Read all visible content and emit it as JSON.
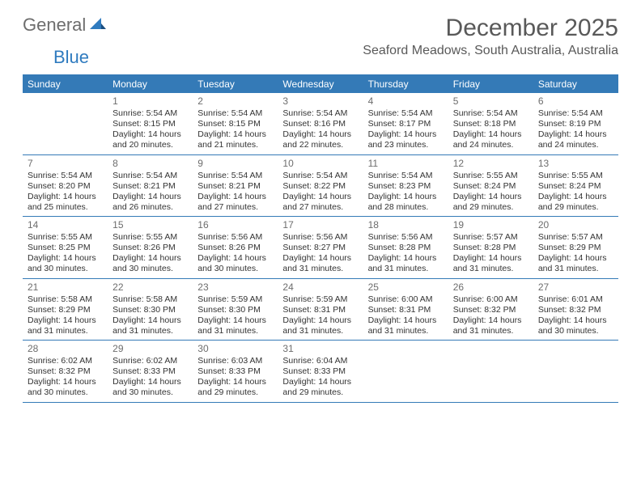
{
  "logo": {
    "text1": "General",
    "text2": "Blue"
  },
  "title": "December 2025",
  "location": "Seaford Meadows, South Australia, Australia",
  "colors": {
    "accent": "#347ab7",
    "header_text": "#ffffff",
    "title_color": "#595959",
    "body_text": "#333333",
    "daynum_color": "#6d6d6d",
    "background": "#ffffff"
  },
  "day_headers": [
    "Sunday",
    "Monday",
    "Tuesday",
    "Wednesday",
    "Thursday",
    "Friday",
    "Saturday"
  ],
  "weeks": [
    [
      null,
      {
        "n": "1",
        "sr": "5:54 AM",
        "ss": "8:15 PM",
        "dl": "14 hours and 20 minutes."
      },
      {
        "n": "2",
        "sr": "5:54 AM",
        "ss": "8:15 PM",
        "dl": "14 hours and 21 minutes."
      },
      {
        "n": "3",
        "sr": "5:54 AM",
        "ss": "8:16 PM",
        "dl": "14 hours and 22 minutes."
      },
      {
        "n": "4",
        "sr": "5:54 AM",
        "ss": "8:17 PM",
        "dl": "14 hours and 23 minutes."
      },
      {
        "n": "5",
        "sr": "5:54 AM",
        "ss": "8:18 PM",
        "dl": "14 hours and 24 minutes."
      },
      {
        "n": "6",
        "sr": "5:54 AM",
        "ss": "8:19 PM",
        "dl": "14 hours and 24 minutes."
      }
    ],
    [
      {
        "n": "7",
        "sr": "5:54 AM",
        "ss": "8:20 PM",
        "dl": "14 hours and 25 minutes."
      },
      {
        "n": "8",
        "sr": "5:54 AM",
        "ss": "8:21 PM",
        "dl": "14 hours and 26 minutes."
      },
      {
        "n": "9",
        "sr": "5:54 AM",
        "ss": "8:21 PM",
        "dl": "14 hours and 27 minutes."
      },
      {
        "n": "10",
        "sr": "5:54 AM",
        "ss": "8:22 PM",
        "dl": "14 hours and 27 minutes."
      },
      {
        "n": "11",
        "sr": "5:54 AM",
        "ss": "8:23 PM",
        "dl": "14 hours and 28 minutes."
      },
      {
        "n": "12",
        "sr": "5:55 AM",
        "ss": "8:24 PM",
        "dl": "14 hours and 29 minutes."
      },
      {
        "n": "13",
        "sr": "5:55 AM",
        "ss": "8:24 PM",
        "dl": "14 hours and 29 minutes."
      }
    ],
    [
      {
        "n": "14",
        "sr": "5:55 AM",
        "ss": "8:25 PM",
        "dl": "14 hours and 30 minutes."
      },
      {
        "n": "15",
        "sr": "5:55 AM",
        "ss": "8:26 PM",
        "dl": "14 hours and 30 minutes."
      },
      {
        "n": "16",
        "sr": "5:56 AM",
        "ss": "8:26 PM",
        "dl": "14 hours and 30 minutes."
      },
      {
        "n": "17",
        "sr": "5:56 AM",
        "ss": "8:27 PM",
        "dl": "14 hours and 31 minutes."
      },
      {
        "n": "18",
        "sr": "5:56 AM",
        "ss": "8:28 PM",
        "dl": "14 hours and 31 minutes."
      },
      {
        "n": "19",
        "sr": "5:57 AM",
        "ss": "8:28 PM",
        "dl": "14 hours and 31 minutes."
      },
      {
        "n": "20",
        "sr": "5:57 AM",
        "ss": "8:29 PM",
        "dl": "14 hours and 31 minutes."
      }
    ],
    [
      {
        "n": "21",
        "sr": "5:58 AM",
        "ss": "8:29 PM",
        "dl": "14 hours and 31 minutes."
      },
      {
        "n": "22",
        "sr": "5:58 AM",
        "ss": "8:30 PM",
        "dl": "14 hours and 31 minutes."
      },
      {
        "n": "23",
        "sr": "5:59 AM",
        "ss": "8:30 PM",
        "dl": "14 hours and 31 minutes."
      },
      {
        "n": "24",
        "sr": "5:59 AM",
        "ss": "8:31 PM",
        "dl": "14 hours and 31 minutes."
      },
      {
        "n": "25",
        "sr": "6:00 AM",
        "ss": "8:31 PM",
        "dl": "14 hours and 31 minutes."
      },
      {
        "n": "26",
        "sr": "6:00 AM",
        "ss": "8:32 PM",
        "dl": "14 hours and 31 minutes."
      },
      {
        "n": "27",
        "sr": "6:01 AM",
        "ss": "8:32 PM",
        "dl": "14 hours and 30 minutes."
      }
    ],
    [
      {
        "n": "28",
        "sr": "6:02 AM",
        "ss": "8:32 PM",
        "dl": "14 hours and 30 minutes."
      },
      {
        "n": "29",
        "sr": "6:02 AM",
        "ss": "8:33 PM",
        "dl": "14 hours and 30 minutes."
      },
      {
        "n": "30",
        "sr": "6:03 AM",
        "ss": "8:33 PM",
        "dl": "14 hours and 29 minutes."
      },
      {
        "n": "31",
        "sr": "6:04 AM",
        "ss": "8:33 PM",
        "dl": "14 hours and 29 minutes."
      },
      null,
      null,
      null
    ]
  ],
  "labels": {
    "sunrise": "Sunrise:",
    "sunset": "Sunset:",
    "daylight": "Daylight:"
  }
}
